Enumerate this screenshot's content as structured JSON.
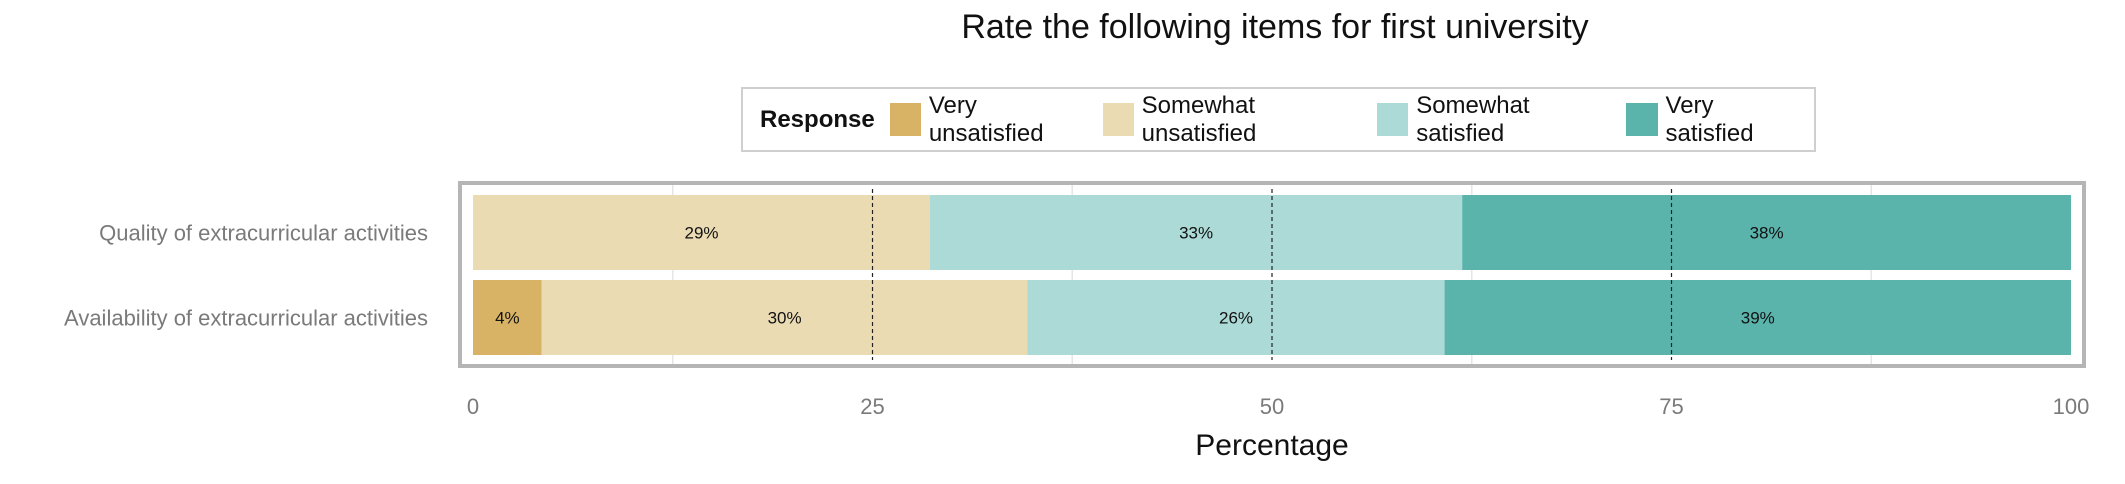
{
  "chart_data": {
    "type": "bar",
    "orientation": "horizontal",
    "stacked": true,
    "title": "Rate the following items for first university",
    "xlabel": "Percentage",
    "ylabel": "",
    "xlim": [
      0,
      100
    ],
    "xticks": [
      "0",
      "25",
      "50",
      "75",
      "100"
    ],
    "grid": true,
    "legend_position": "top",
    "legend_title": "Response",
    "categories": [
      "Quality of extracurricular activities",
      "Availability of extracurricular activities"
    ],
    "series": [
      {
        "name": "Very unsatisfied",
        "color": "#d8b365",
        "values": [
          0,
          4.3
        ],
        "labels": [
          "",
          "4%"
        ]
      },
      {
        "name": "Somewhat unsatisfied",
        "color": "#eadbb3",
        "values": [
          28.6,
          30.4
        ],
        "labels": [
          "29%",
          "30%"
        ]
      },
      {
        "name": "Somewhat satisfied",
        "color": "#acdad6",
        "values": [
          33.3,
          26.1
        ],
        "labels": [
          "33%",
          "26%"
        ]
      },
      {
        "name": "Very satisfied",
        "color": "#5ab4ac",
        "values": [
          38.1,
          39.2
        ],
        "labels": [
          "38%",
          "39%"
        ]
      }
    ]
  }
}
